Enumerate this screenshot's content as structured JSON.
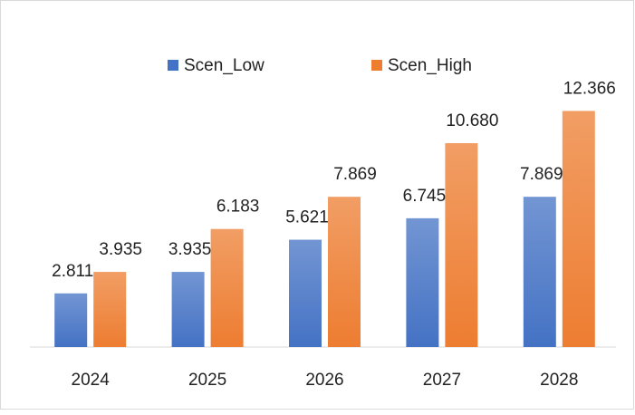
{
  "chart_data": {
    "type": "bar",
    "categories": [
      "2024",
      "2025",
      "2026",
      "2027",
      "2028"
    ],
    "series": [
      {
        "name": "Scen_Low",
        "color": "#4472c4",
        "values": [
          2.811,
          3.935,
          5.621,
          6.745,
          7.869
        ],
        "value_labels": [
          "2.811",
          "3.935",
          "5.621",
          "6.745",
          "7.869"
        ]
      },
      {
        "name": "Scen_High",
        "color": "#ed7d31",
        "values": [
          3.935,
          6.183,
          7.869,
          10.68,
          12.366
        ],
        "value_labels": [
          "3.935",
          "6.183",
          "7.869",
          "10.680",
          "12.366"
        ]
      }
    ],
    "ylim": [
      0,
      14
    ],
    "legend": "top"
  }
}
